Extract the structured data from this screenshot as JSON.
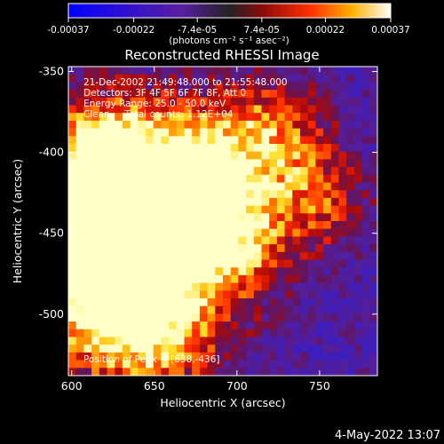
{
  "colorbar": {
    "tick_labels": [
      "-0.00037",
      "-0.00022",
      "-7.4e-05",
      "7.4e-05",
      "0.00022",
      "0.00037"
    ],
    "ticks": [
      -0.00037,
      -0.00022,
      -7.4e-05,
      7.4e-05,
      0.00022,
      0.00037
    ],
    "range": [
      -0.00037,
      0.00037
    ],
    "units_label": "(photons cm⁻² s⁻¹ asec⁻²)"
  },
  "plot": {
    "title": "Reconstructed RHESSI Image",
    "xlabel": "Heliocentric X (arcsec)",
    "ylabel": "Heliocentric Y (arcsec)",
    "xticks": [
      "600",
      "650",
      "700",
      "750"
    ],
    "yticks": [
      "-350",
      "-400",
      "-450",
      "-500"
    ],
    "annotations": [
      "21-Dec-2002 21:49:48.000 to 21:55:48.000",
      "Detectors: 3F 4F 5F 6F 7F 8F, Att 0",
      "Energy Range: 25.0 - 50.0 keV",
      "Clean     Total counts: 1.12E+04"
    ],
    "peak_label": "Position of Peak = [638,-436]"
  },
  "footer": {
    "timestamp": "4-May-2022 13:07"
  },
  "chart_data": {
    "type": "heatmap",
    "title": "Reconstructed RHESSI Image",
    "xlabel": "Heliocentric X (arcsec)",
    "ylabel": "Heliocentric Y (arcsec)",
    "xlim": [
      598,
      785
    ],
    "ylim": [
      -538,
      -347
    ],
    "xticks": [
      600,
      650,
      700,
      750
    ],
    "yticks": [
      -350,
      -400,
      -450,
      -500
    ],
    "colormap": "rainbow-black-blue-purple-red-yellow-white",
    "color_range": [
      -0.00037,
      0.00037
    ],
    "peak_position": [
      638,
      -436
    ],
    "time_range": "21-Dec-2002 21:49:48.000 to 21:55:48.000",
    "energy_range_keV": [
      25.0,
      50.0
    ],
    "total_counts": 11200,
    "colors": {
      "background": "#000000",
      "low": "#1a1aff",
      "mid": "#5a1ea0",
      "high": "#ff3000",
      "peak": "#ffff80"
    }
  }
}
